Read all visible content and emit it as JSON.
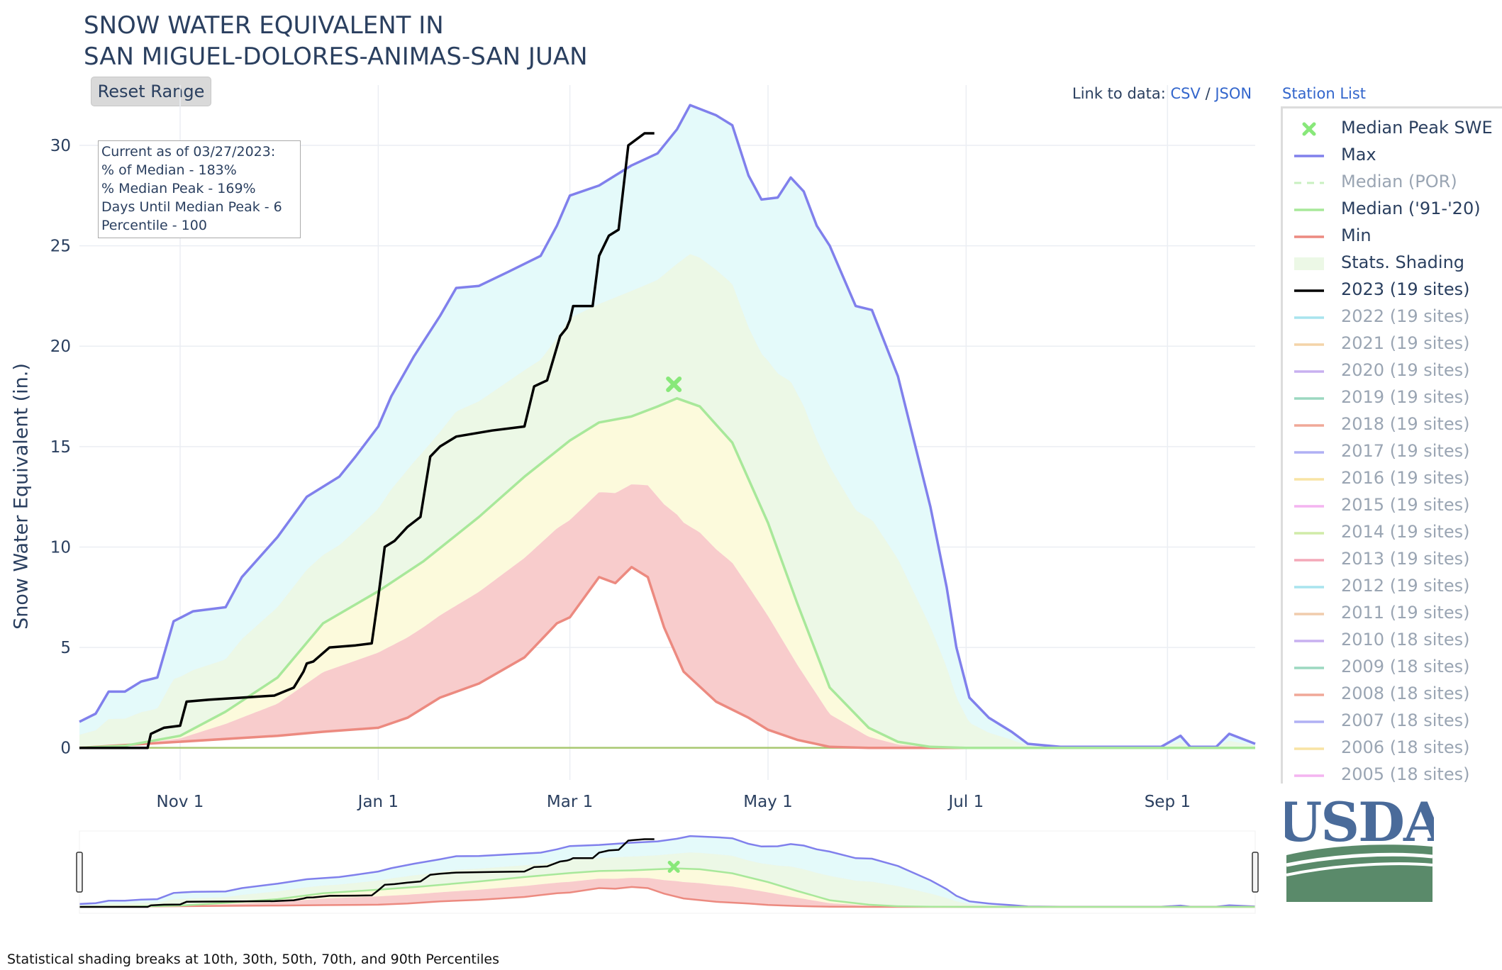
{
  "title_lines": [
    "SNOW WATER EQUIVALENT IN",
    "SAN MIGUEL-DOLORES-ANIMAS-SAN JUAN"
  ],
  "reset_button": "Reset Range",
  "links": {
    "prefix": "Link to data:",
    "csv": "CSV",
    "sep": "/",
    "json": "JSON",
    "station_list": "Station List"
  },
  "info_box": [
    "Current as of 03/27/2023:",
    "% of Median - 183%",
    "% Median Peak - 169%",
    "Days Until Median Peak - 6",
    "Percentile - 100"
  ],
  "footnote": "Statistical shading breaks at 10th, 30th, 50th, 70th, and 90th Percentiles",
  "logo_text": "USDA",
  "colors": {
    "max": "#8080ec",
    "median": "#a8e89a",
    "min": "#ec8a80",
    "current": "#000000",
    "band_10_30": "#f8cccc",
    "band_30_50": "#fcfadc",
    "band_50_70": "#ecf8e6",
    "band_70_90": "#e4fafa",
    "band_90_max": "#d4d4fc",
    "peak_marker": "#88e87a",
    "usda_blue": "#4a6b9a",
    "usda_green": "#5a8a6a"
  },
  "legend": [
    {
      "label": "Median Peak SWE",
      "symbol": "x",
      "color": "#88e87a",
      "dim": false
    },
    {
      "label": "Max",
      "symbol": "line",
      "color": "#8080ec",
      "dim": false
    },
    {
      "label": "Median (POR)",
      "symbol": "dash",
      "color": "#c8f0c0",
      "dim": true
    },
    {
      "label": "Median ('91-'20)",
      "symbol": "line",
      "color": "#a8e89a",
      "dim": false
    },
    {
      "label": "Min",
      "symbol": "line",
      "color": "#ec8a80",
      "dim": false
    },
    {
      "label": "Stats. Shading",
      "symbol": "box",
      "color": "#ecf8e6",
      "dim": false
    },
    {
      "label": "2023 (19 sites)",
      "symbol": "line",
      "color": "#000000",
      "dim": false
    },
    {
      "label": "2022 (19 sites)",
      "symbol": "line",
      "color": "#a8e4ee",
      "dim": true
    },
    {
      "label": "2021 (19 sites)",
      "symbol": "line",
      "color": "#f4d4a8",
      "dim": true
    },
    {
      "label": "2020 (19 sites)",
      "symbol": "line",
      "color": "#c8b0f0",
      "dim": true
    },
    {
      "label": "2019 (19 sites)",
      "symbol": "line",
      "color": "#9cd8c0",
      "dim": true
    },
    {
      "label": "2018 (19 sites)",
      "symbol": "line",
      "color": "#f0a898",
      "dim": true
    },
    {
      "label": "2017 (19 sites)",
      "symbol": "line",
      "color": "#b0b0f4",
      "dim": true
    },
    {
      "label": "2016 (19 sites)",
      "symbol": "line",
      "color": "#f8e4a4",
      "dim": true
    },
    {
      "label": "2015 (19 sites)",
      "symbol": "line",
      "color": "#f4b4f0",
      "dim": true
    },
    {
      "label": "2014 (19 sites)",
      "symbol": "line",
      "color": "#d0eca8",
      "dim": true
    },
    {
      "label": "2013 (19 sites)",
      "symbol": "line",
      "color": "#f4a8b8",
      "dim": true
    },
    {
      "label": "2012 (19 sites)",
      "symbol": "line",
      "color": "#a8e4ee",
      "dim": true
    },
    {
      "label": "2011 (19 sites)",
      "symbol": "line",
      "color": "#f0ccac",
      "dim": true
    },
    {
      "label": "2010 (18 sites)",
      "symbol": "line",
      "color": "#c8b0f0",
      "dim": true
    },
    {
      "label": "2009 (18 sites)",
      "symbol": "line",
      "color": "#9cd8c0",
      "dim": true
    },
    {
      "label": "2008 (18 sites)",
      "symbol": "line",
      "color": "#f0a898",
      "dim": true
    },
    {
      "label": "2007 (18 sites)",
      "symbol": "line",
      "color": "#b0b0f4",
      "dim": true
    },
    {
      "label": "2006 (18 sites)",
      "symbol": "line",
      "color": "#f8e4a4",
      "dim": true
    },
    {
      "label": "2005 (18 sites)",
      "symbol": "line",
      "color": "#f4b4f0",
      "dim": true
    }
  ],
  "chart_data": {
    "type": "area",
    "ylabel": "Snow Water Equivalent (in.)",
    "ylim": [
      -1.6,
      33
    ],
    "yticks": [
      0,
      5,
      10,
      15,
      20,
      25,
      30
    ],
    "xlim": [
      "2022-10-01",
      "2023-09-28"
    ],
    "xticks": [
      {
        "date": "2022-11-01",
        "label": "Nov 1"
      },
      {
        "date": "2023-01-01",
        "label": "Jan 1"
      },
      {
        "date": "2023-03-01",
        "label": "Mar 1"
      },
      {
        "date": "2023-05-01",
        "label": "May 1"
      },
      {
        "date": "2023-07-01",
        "label": "Jul 1"
      },
      {
        "date": "2023-09-01",
        "label": "Sep 1"
      }
    ],
    "grid": true,
    "legend_position": "right",
    "median_peak": {
      "date": "2023-04-02",
      "value": 18.1
    },
    "series": [
      {
        "name": "Max",
        "points": [
          [
            "2022-10-01",
            1.3
          ],
          [
            "2022-10-06",
            1.7
          ],
          [
            "2022-10-10",
            2.8
          ],
          [
            "2022-10-15",
            2.8
          ],
          [
            "2022-10-20",
            3.3
          ],
          [
            "2022-10-25",
            3.5
          ],
          [
            "2022-10-30",
            6.3
          ],
          [
            "2022-11-05",
            6.8
          ],
          [
            "2022-11-15",
            7.0
          ],
          [
            "2022-11-20",
            8.5
          ],
          [
            "2022-12-01",
            10.5
          ],
          [
            "2022-12-10",
            12.5
          ],
          [
            "2022-12-20",
            13.5
          ],
          [
            "2022-12-25",
            14.5
          ],
          [
            "2023-01-01",
            16.0
          ],
          [
            "2023-01-05",
            17.5
          ],
          [
            "2023-01-12",
            19.5
          ],
          [
            "2023-01-20",
            21.5
          ],
          [
            "2023-01-25",
            22.9
          ],
          [
            "2023-02-01",
            23.0
          ],
          [
            "2023-02-10",
            23.7
          ],
          [
            "2023-02-20",
            24.5
          ],
          [
            "2023-02-25",
            26.0
          ],
          [
            "2023-03-01",
            27.5
          ],
          [
            "2023-03-10",
            28.0
          ],
          [
            "2023-03-20",
            29.0
          ],
          [
            "2023-03-28",
            29.6
          ],
          [
            "2023-04-03",
            30.8
          ],
          [
            "2023-04-07",
            32.0
          ],
          [
            "2023-04-15",
            31.5
          ],
          [
            "2023-04-20",
            31.0
          ],
          [
            "2023-04-25",
            28.5
          ],
          [
            "2023-04-29",
            27.3
          ],
          [
            "2023-05-04",
            27.4
          ],
          [
            "2023-05-08",
            28.4
          ],
          [
            "2023-05-12",
            27.7
          ],
          [
            "2023-05-16",
            26.0
          ],
          [
            "2023-05-20",
            25.0
          ],
          [
            "2023-05-28",
            22.0
          ],
          [
            "2023-06-02",
            21.8
          ],
          [
            "2023-06-10",
            18.5
          ],
          [
            "2023-06-20",
            12.0
          ],
          [
            "2023-06-25",
            8.0
          ],
          [
            "2023-06-28",
            5.0
          ],
          [
            "2023-07-02",
            2.5
          ],
          [
            "2023-07-08",
            1.5
          ],
          [
            "2023-07-15",
            0.8
          ],
          [
            "2023-07-20",
            0.2
          ],
          [
            "2023-07-30",
            0.05
          ],
          [
            "2023-08-30",
            0.05
          ],
          [
            "2023-09-05",
            0.6
          ],
          [
            "2023-09-08",
            0.05
          ],
          [
            "2023-09-16",
            0.05
          ],
          [
            "2023-09-20",
            0.7
          ],
          [
            "2023-09-28",
            0.2
          ]
        ]
      },
      {
        "name": "Median ('91-'20)",
        "points": [
          [
            "2022-10-01",
            0
          ],
          [
            "2022-10-15",
            0.1
          ],
          [
            "2022-11-01",
            0.6
          ],
          [
            "2022-11-15",
            1.8
          ],
          [
            "2022-12-01",
            3.5
          ],
          [
            "2022-12-15",
            6.2
          ],
          [
            "2023-01-01",
            7.8
          ],
          [
            "2023-01-15",
            9.3
          ],
          [
            "2023-02-01",
            11.5
          ],
          [
            "2023-02-15",
            13.5
          ],
          [
            "2023-03-01",
            15.3
          ],
          [
            "2023-03-10",
            16.2
          ],
          [
            "2023-03-20",
            16.5
          ],
          [
            "2023-03-28",
            17.0
          ],
          [
            "2023-04-03",
            17.4
          ],
          [
            "2023-04-10",
            17.0
          ],
          [
            "2023-04-20",
            15.2
          ],
          [
            "2023-05-01",
            11.2
          ],
          [
            "2023-05-10",
            7.2
          ],
          [
            "2023-05-20",
            3.0
          ],
          [
            "2023-06-01",
            1.0
          ],
          [
            "2023-06-10",
            0.3
          ],
          [
            "2023-06-20",
            0.05
          ],
          [
            "2023-07-01",
            0
          ],
          [
            "2023-09-28",
            0
          ]
        ]
      },
      {
        "name": "Min",
        "points": [
          [
            "2022-10-01",
            0
          ],
          [
            "2022-12-01",
            0.6
          ],
          [
            "2022-12-15",
            0.8
          ],
          [
            "2023-01-01",
            1.0
          ],
          [
            "2023-01-10",
            1.5
          ],
          [
            "2023-01-20",
            2.5
          ],
          [
            "2023-02-01",
            3.2
          ],
          [
            "2023-02-15",
            4.5
          ],
          [
            "2023-02-25",
            6.2
          ],
          [
            "2023-03-01",
            6.5
          ],
          [
            "2023-03-10",
            8.5
          ],
          [
            "2023-03-15",
            8.2
          ],
          [
            "2023-03-20",
            9.0
          ],
          [
            "2023-03-25",
            8.5
          ],
          [
            "2023-03-30",
            6.0
          ],
          [
            "2023-04-05",
            3.8
          ],
          [
            "2023-04-15",
            2.3
          ],
          [
            "2023-04-25",
            1.5
          ],
          [
            "2023-05-01",
            0.9
          ],
          [
            "2023-05-10",
            0.4
          ],
          [
            "2023-05-20",
            0.05
          ],
          [
            "2023-06-01",
            0
          ],
          [
            "2023-09-28",
            0
          ]
        ]
      },
      {
        "name": "2023 (19 sites)",
        "points": [
          [
            "2022-10-01",
            0
          ],
          [
            "2022-10-22",
            0
          ],
          [
            "2022-10-23",
            0.7
          ],
          [
            "2022-10-27",
            1.0
          ],
          [
            "2022-11-01",
            1.1
          ],
          [
            "2022-11-03",
            2.3
          ],
          [
            "2022-11-10",
            2.4
          ],
          [
            "2022-11-20",
            2.5
          ],
          [
            "2022-11-30",
            2.6
          ],
          [
            "2022-12-06",
            3.0
          ],
          [
            "2022-12-09",
            3.8
          ],
          [
            "2022-12-10",
            4.2
          ],
          [
            "2022-12-12",
            4.3
          ],
          [
            "2022-12-17",
            5.0
          ],
          [
            "2022-12-25",
            5.1
          ],
          [
            "2022-12-30",
            5.2
          ],
          [
            "2023-01-01",
            7.5
          ],
          [
            "2023-01-03",
            10.0
          ],
          [
            "2023-01-06",
            10.3
          ],
          [
            "2023-01-10",
            11.0
          ],
          [
            "2023-01-14",
            11.5
          ],
          [
            "2023-01-17",
            14.5
          ],
          [
            "2023-01-20",
            15.0
          ],
          [
            "2023-01-25",
            15.5
          ],
          [
            "2023-02-05",
            15.8
          ],
          [
            "2023-02-15",
            16.0
          ],
          [
            "2023-02-18",
            18.0
          ],
          [
            "2023-02-22",
            18.3
          ],
          [
            "2023-02-26",
            20.5
          ],
          [
            "2023-02-28",
            20.9
          ],
          [
            "2023-03-01",
            21.3
          ],
          [
            "2023-03-02",
            22.0
          ],
          [
            "2023-03-08",
            22.0
          ],
          [
            "2023-03-10",
            24.5
          ],
          [
            "2023-03-13",
            25.5
          ],
          [
            "2023-03-16",
            25.8
          ],
          [
            "2023-03-19",
            30.0
          ],
          [
            "2023-03-24",
            30.6
          ],
          [
            "2023-03-27",
            30.6
          ]
        ]
      }
    ],
    "stats_bands": "10th, 30th, 50th, 70th, and 90th Percentiles"
  }
}
